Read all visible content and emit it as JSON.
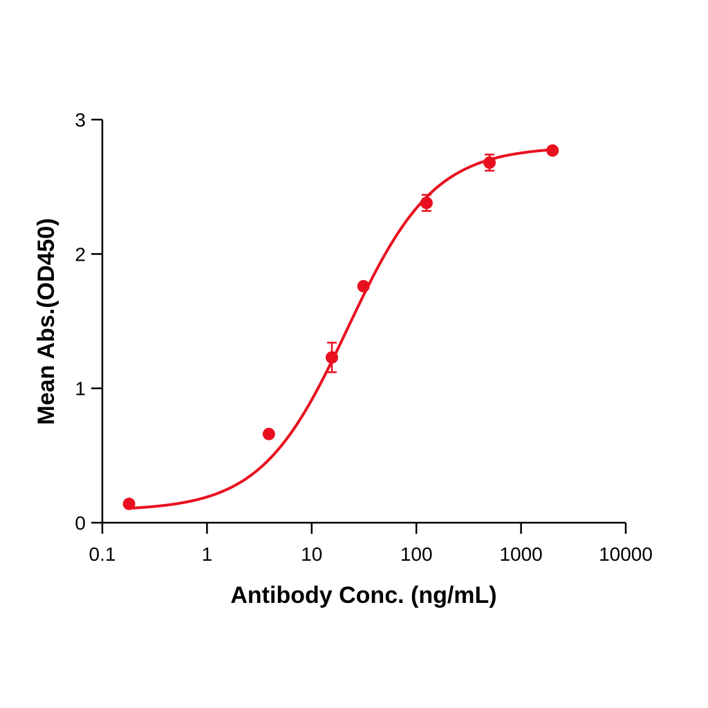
{
  "chart_data": {
    "type": "scatter",
    "title": "",
    "xlabel": "Antibody Conc. (ng/mL)",
    "ylabel": "Mean Abs.(OD450)",
    "x_scale": "log",
    "xlim": [
      0.1,
      10000
    ],
    "ylim": [
      0,
      3
    ],
    "x_ticks": [
      "0.1",
      "1",
      "10",
      "100",
      "1000",
      "10000"
    ],
    "y_ticks": [
      "0",
      "1",
      "2",
      "3"
    ],
    "grid": false,
    "legend": "none",
    "color": "#e8101f",
    "series": [
      {
        "x": [
          0.18,
          3.9,
          15.6,
          31.25,
          125,
          500,
          2000
        ],
        "y": [
          0.14,
          0.66,
          1.23,
          1.76,
          2.38,
          2.68,
          2.77
        ],
        "error": [
          0.01,
          0.02,
          0.11,
          0.02,
          0.06,
          0.06,
          0.02
        ]
      }
    ],
    "fit_curve": {
      "model": "4PL",
      "bottom": 0.09,
      "top": 2.8,
      "ec50": 22,
      "hill": 1.05
    }
  }
}
